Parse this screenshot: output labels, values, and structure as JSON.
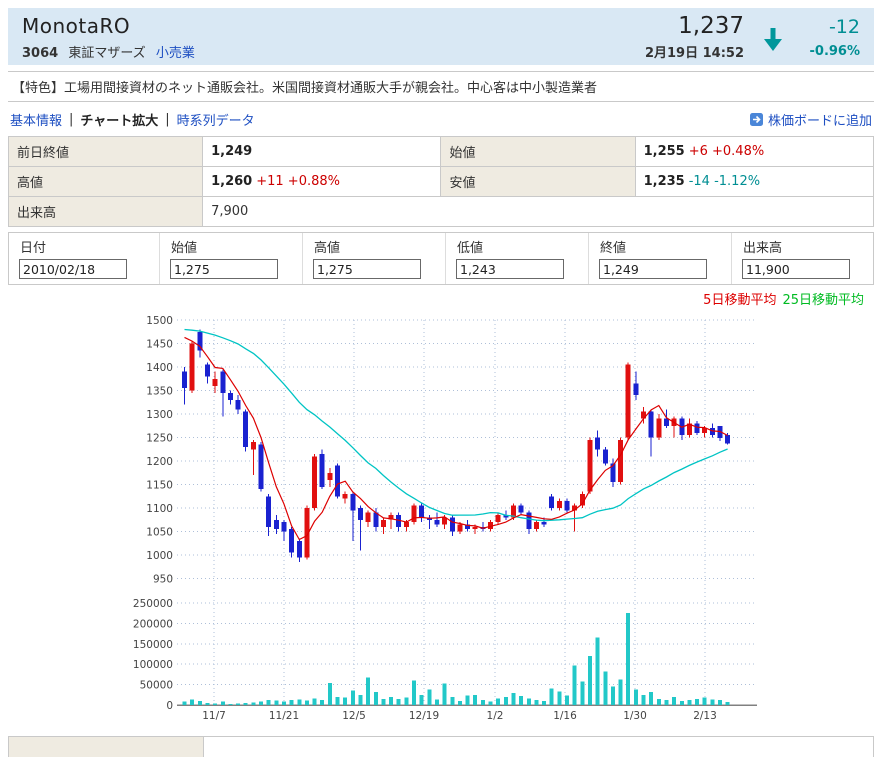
{
  "header": {
    "title": "MonotaRO",
    "code": "3064",
    "market": "東証マザーズ",
    "industry": "小売業",
    "price": "1,237",
    "datetime": "2月19日 14:52",
    "change": "-12",
    "change_pct": "-0.96%",
    "direction": "down"
  },
  "feature": {
    "text": "【特色】工場用間接資材のネット通販会社。米国間接資材通販大手が親会社。中心客は中小製造業者"
  },
  "nav": {
    "basic_info": "基本情報",
    "chart_zoom": "チャート拡大",
    "time_series": "時系列データ",
    "separator": "|",
    "add_to_board": "株価ボードに追加"
  },
  "quote_table": {
    "prev_close": {
      "label": "前日終値",
      "value": "1,249",
      "change": "",
      "change_color": ""
    },
    "open": {
      "label": "始値",
      "value": "1,255",
      "change": "+6 +0.48%",
      "change_color": "#cc0000"
    },
    "high": {
      "label": "高値",
      "value": "1,260",
      "change": "+11 +0.88%",
      "change_color": "#cc0000"
    },
    "low": {
      "label": "安値",
      "value": "1,235",
      "change": "-14 -1.12%",
      "change_color": "#008e93"
    },
    "volume": {
      "label": "出来高",
      "value": "7,900",
      "change": "",
      "change_color": ""
    }
  },
  "ohlc_inputs": {
    "fields": [
      {
        "label": "日付",
        "value": "2010/02/18"
      },
      {
        "label": "始値",
        "value": "1,275"
      },
      {
        "label": "高値",
        "value": "1,275"
      },
      {
        "label": "低値",
        "value": "1,243"
      },
      {
        "label": "終値",
        "value": "1,249"
      },
      {
        "label": "出来高",
        "value": "11,900"
      }
    ]
  },
  "legend": {
    "ma5_label": "5日移動平均",
    "ma25_label": "25日移動平均",
    "ma5_label_color": "#dd0000",
    "ma25_label_color": "#00bb22"
  },
  "chart_data": {
    "type": "candlestick+volume",
    "title": "",
    "x_labels": [
      "11/7",
      "11/21",
      "12/5",
      "12/19",
      "1/2",
      "1/16",
      "1/30",
      "2/13"
    ],
    "price_axis_ticks": [
      1500,
      1450,
      1400,
      1350,
      1300,
      1250,
      1200,
      1150,
      1100,
      1050,
      1000,
      950
    ],
    "volume_axis_ticks": [
      250000,
      200000,
      150000,
      100000,
      50000,
      0
    ],
    "price_range": [
      950,
      1500
    ],
    "volume_range": [
      0,
      250000
    ],
    "grid": "dotted",
    "series_note": "candles = [open, high, low, close, volume] per trading day, Nov 2009 - Feb 19 2010 (values estimated from chart)",
    "candles": [
      [
        1390,
        1400,
        1320,
        1355,
        9000
      ],
      [
        1350,
        1455,
        1345,
        1450,
        13000
      ],
      [
        1475,
        1480,
        1420,
        1435,
        10000
      ],
      [
        1405,
        1410,
        1365,
        1380,
        5000
      ],
      [
        1360,
        1390,
        1345,
        1375,
        4000
      ],
      [
        1390,
        1395,
        1295,
        1345,
        8000
      ],
      [
        1345,
        1350,
        1320,
        1330,
        3000
      ],
      [
        1330,
        1340,
        1300,
        1310,
        4000
      ],
      [
        1305,
        1310,
        1220,
        1230,
        5000
      ],
      [
        1225,
        1245,
        1170,
        1240,
        6000
      ],
      [
        1235,
        1240,
        1135,
        1140,
        8000
      ],
      [
        1125,
        1130,
        1040,
        1060,
        12000
      ],
      [
        1075,
        1085,
        1045,
        1055,
        11000
      ],
      [
        1070,
        1075,
        1030,
        1050,
        9000
      ],
      [
        1055,
        1060,
        995,
        1005,
        12000
      ],
      [
        1030,
        1035,
        985,
        995,
        13000
      ],
      [
        995,
        1105,
        990,
        1100,
        11000
      ],
      [
        1100,
        1215,
        1095,
        1210,
        16000
      ],
      [
        1215,
        1225,
        1140,
        1145,
        12000
      ],
      [
        1160,
        1185,
        1145,
        1175,
        54000
      ],
      [
        1190,
        1195,
        1120,
        1125,
        20000
      ],
      [
        1120,
        1135,
        1110,
        1130,
        18000
      ],
      [
        1130,
        1135,
        1030,
        1095,
        35000
      ],
      [
        1100,
        1105,
        1010,
        1075,
        24000
      ],
      [
        1070,
        1095,
        1060,
        1090,
        68000
      ],
      [
        1090,
        1100,
        1050,
        1060,
        32000
      ],
      [
        1060,
        1080,
        1045,
        1075,
        15000
      ],
      [
        1075,
        1090,
        1055,
        1085,
        20000
      ],
      [
        1085,
        1090,
        1050,
        1060,
        15000
      ],
      [
        1060,
        1075,
        1050,
        1070,
        18000
      ],
      [
        1070,
        1110,
        1065,
        1105,
        60000
      ],
      [
        1105,
        1110,
        1070,
        1080,
        25000
      ],
      [
        1080,
        1085,
        1055,
        1075,
        38000
      ],
      [
        1075,
        1090,
        1060,
        1065,
        14000
      ],
      [
        1065,
        1085,
        1055,
        1080,
        53000
      ],
      [
        1080,
        1085,
        1040,
        1050,
        20000
      ],
      [
        1050,
        1070,
        1045,
        1065,
        10000
      ],
      [
        1065,
        1075,
        1050,
        1055,
        23000
      ],
      [
        1055,
        1065,
        1045,
        1060,
        25000
      ],
      [
        1060,
        1070,
        1050,
        1055,
        12000
      ],
      [
        1055,
        1075,
        1050,
        1070,
        8000
      ],
      [
        1070,
        1090,
        1065,
        1085,
        16000
      ],
      [
        1085,
        1095,
        1075,
        1080,
        20000
      ],
      [
        1080,
        1110,
        1075,
        1105,
        30000
      ],
      [
        1105,
        1110,
        1085,
        1090,
        22000
      ],
      [
        1090,
        1095,
        1045,
        1055,
        16000
      ],
      [
        1055,
        1075,
        1050,
        1070,
        12000
      ],
      [
        1070,
        1080,
        1060,
        1065,
        10000
      ],
      [
        1125,
        1130,
        1095,
        1100,
        40000
      ],
      [
        1100,
        1120,
        1095,
        1115,
        33000
      ],
      [
        1115,
        1120,
        1090,
        1095,
        23000
      ],
      [
        1095,
        1110,
        1050,
        1105,
        97000
      ],
      [
        1105,
        1135,
        1100,
        1130,
        57000
      ],
      [
        1135,
        1250,
        1130,
        1245,
        120000
      ],
      [
        1250,
        1265,
        1210,
        1225,
        165000
      ],
      [
        1225,
        1230,
        1190,
        1195,
        82000
      ],
      [
        1195,
        1205,
        1145,
        1155,
        45000
      ],
      [
        1155,
        1250,
        1150,
        1245,
        62000
      ],
      [
        1250,
        1410,
        1245,
        1405,
        225000
      ],
      [
        1365,
        1390,
        1330,
        1340,
        38000
      ],
      [
        1290,
        1315,
        1280,
        1305,
        25000
      ],
      [
        1305,
        1310,
        1210,
        1250,
        32000
      ],
      [
        1250,
        1300,
        1245,
        1290,
        15000
      ],
      [
        1290,
        1310,
        1270,
        1275,
        12000
      ],
      [
        1275,
        1295,
        1250,
        1290,
        20000
      ],
      [
        1290,
        1295,
        1245,
        1255,
        10000
      ],
      [
        1255,
        1290,
        1250,
        1280,
        12000
      ],
      [
        1280,
        1285,
        1255,
        1260,
        15000
      ],
      [
        1260,
        1275,
        1250,
        1270,
        18000
      ],
      [
        1270,
        1280,
        1250,
        1255,
        13000
      ],
      [
        1275,
        1275,
        1243,
        1249,
        11900
      ],
      [
        1255,
        1260,
        1235,
        1237,
        7900
      ]
    ],
    "moving_averages": {
      "ma5_window": 5,
      "ma25_window": 25,
      "ma5_seed": 1490,
      "ma25_seed": 1485
    },
    "colors": {
      "candle_up": "#e11010",
      "candle_down": "#1a22d0",
      "ma5_line": "#dd0000",
      "ma25_line": "#00c4c4",
      "volume_bar": "#22c8c8",
      "grid": "#aebfd8",
      "axis_text": "#444444",
      "zero_axis": "#808080"
    }
  },
  "page_colors": {
    "header_bg": "#d9e8f4",
    "label_cell_bg": "#efebe1",
    "border": "#c9c9c9",
    "link_blue": "#1e4fc2",
    "visited_purple": "#5c3a96",
    "positive_red": "#cc0000",
    "negative_teal": "#008e93"
  }
}
